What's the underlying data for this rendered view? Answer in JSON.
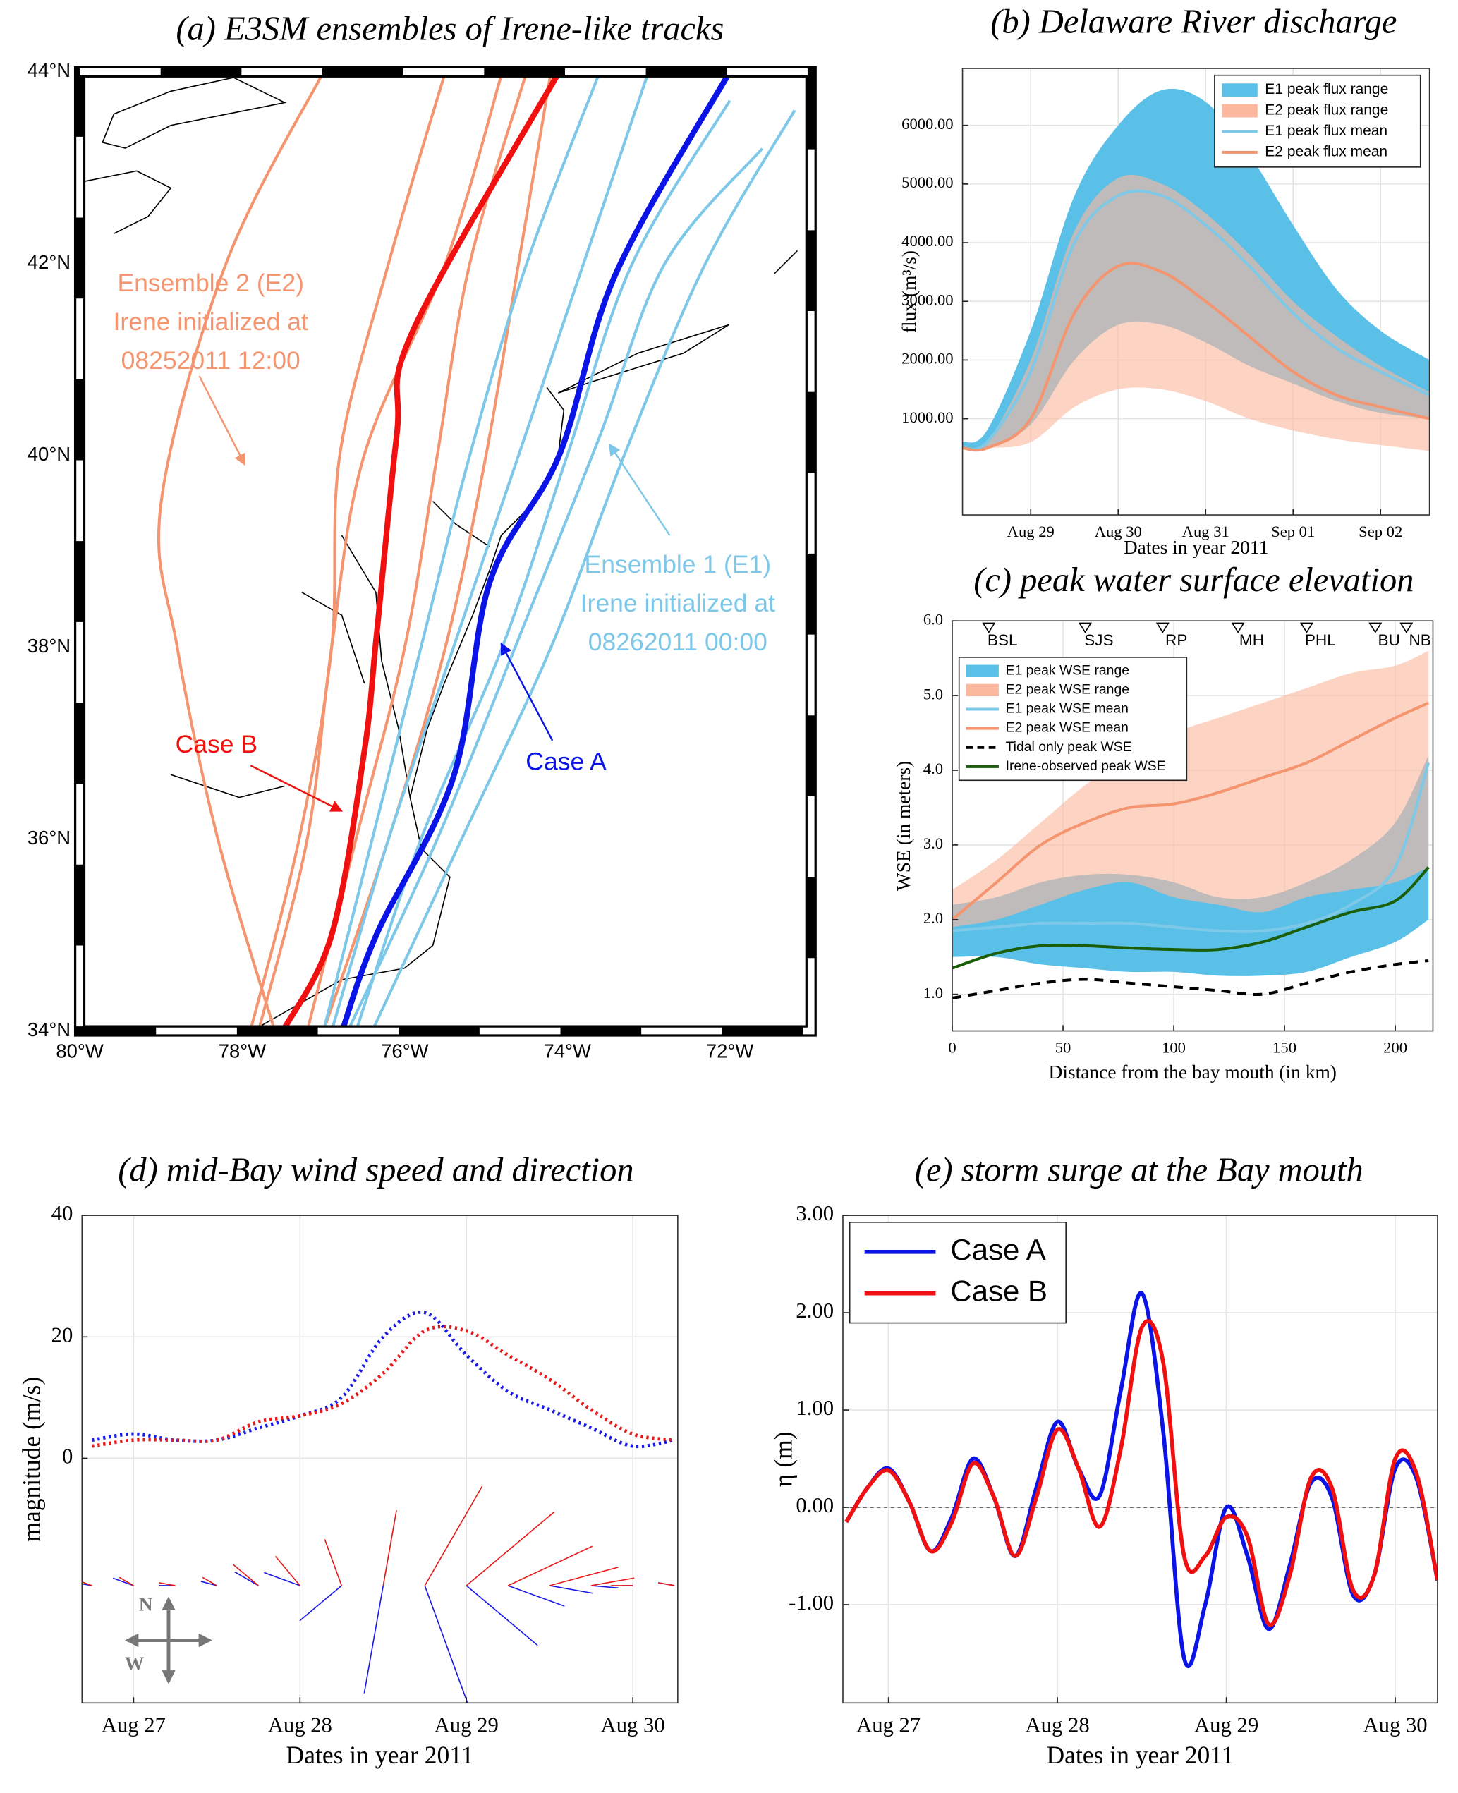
{
  "chart_data": [
    {
      "type": "map-track",
      "title": "(a) E3SM ensembles of Irene-like tracks",
      "xlim": [
        -80,
        -71
      ],
      "ylim": [
        34,
        44
      ],
      "xticks": [
        {
          "value": -80,
          "label": "80°W"
        },
        {
          "value": -78,
          "label": "78°W"
        },
        {
          "value": -76,
          "label": "76°W"
        },
        {
          "value": -74,
          "label": "74°W"
        },
        {
          "value": -72,
          "label": "72°W"
        }
      ],
      "yticks": [
        {
          "value": 34,
          "label": "34°N"
        },
        {
          "value": 36,
          "label": "36°N"
        },
        {
          "value": 38,
          "label": "38°N"
        },
        {
          "value": 40,
          "label": "40°N"
        },
        {
          "value": 42,
          "label": "42°N"
        },
        {
          "value": 44,
          "label": "44°N"
        }
      ],
      "ensembles": [
        {
          "label_lines": [
            "Ensemble 2 (E2)",
            "Irene initialized at",
            "08252011 12:00"
          ],
          "color": "#f4956f",
          "tracks": [
            {
              "x": [
                -77.8,
                -77.2,
                -76.9,
                -76.5,
                -75.5,
                -74.8
              ],
              "y": [
                34,
                36,
                38,
                40,
                42,
                44
              ]
            },
            {
              "x": [
                -77.6,
                -78.3,
                -78.8,
                -79.0,
                -78.2,
                -77.0
              ],
              "y": [
                34,
                36,
                38,
                39.5,
                42,
                44
              ]
            },
            {
              "x": [
                -77.2,
                -76.6,
                -76.0,
                -75.6,
                -75.2,
                -74.5
              ],
              "y": [
                34,
                36,
                38,
                40,
                42,
                44
              ]
            },
            {
              "x": [
                -77.9,
                -77.3,
                -76.9,
                -76.8,
                -76.2,
                -75.5
              ],
              "y": [
                34,
                36,
                38,
                40,
                42,
                44
              ]
            },
            {
              "x": [
                -77.0,
                -76.2,
                -75.5,
                -75.0,
                -74.6,
                -74.2
              ],
              "y": [
                34,
                36,
                38,
                40,
                42,
                44
              ]
            }
          ]
        },
        {
          "label_lines": [
            "Ensemble 1 (E1)",
            "Irene initialized at",
            "08262011 00:00"
          ],
          "color": "#7dc8e8",
          "tracks": [
            {
              "x": [
                -76.6,
                -75.8,
                -74.8,
                -74.0,
                -73.2,
                -72.0
              ],
              "y": [
                34,
                36,
                38,
                40,
                42,
                43.7
              ]
            },
            {
              "x": [
                -76.9,
                -76.2,
                -75.4,
                -74.6,
                -73.8,
                -73.0
              ],
              "y": [
                34,
                36,
                38,
                40,
                42,
                44
              ]
            },
            {
              "x": [
                -76.4,
                -75.3,
                -74.2,
                -73.3,
                -72.3,
                -71.2
              ],
              "y": [
                34,
                36,
                38,
                40,
                42,
                43.6
              ]
            },
            {
              "x": [
                -77.0,
                -76.4,
                -75.8,
                -75.2,
                -74.5,
                -73.6
              ],
              "y": [
                34,
                36,
                38,
                40,
                42,
                44
              ]
            },
            {
              "x": [
                -76.7,
                -75.6,
                -74.5,
                -73.6,
                -72.8,
                -71.6
              ],
              "y": [
                34,
                36,
                38.3,
                40.2,
                42,
                43.2
              ]
            }
          ]
        }
      ],
      "series": [
        {
          "name": "Case A",
          "color": "#0a14e6",
          "x": [
            -76.77,
            -76.35,
            -75.4,
            -74.95,
            -74.1,
            -73.4,
            -72.0
          ],
          "y": [
            34,
            35,
            36.65,
            38.69,
            40.0,
            41.9,
            44.0
          ]
        },
        {
          "name": "Case B",
          "color": "#f01010",
          "x": [
            -77.5,
            -76.9,
            -76.5,
            -76.35,
            -76.1,
            -75.9,
            -74.1
          ],
          "y": [
            34,
            35,
            36.9,
            38.1,
            40.2,
            41.3,
            44.0
          ]
        }
      ]
    },
    {
      "type": "range-line",
      "title": "(b) Delaware River discharge",
      "x_label": "Dates in year 2011",
      "y_label": "flux (m³/s)",
      "x": [
        28.22,
        28.5,
        29,
        29.5,
        30,
        30.5,
        31,
        31.5,
        32,
        32.5,
        33,
        33.56
      ],
      "xlim": [
        28.22,
        33.56
      ],
      "xticks": [
        {
          "value": 29,
          "label": "Aug 29"
        },
        {
          "value": 30,
          "label": "Aug 30"
        },
        {
          "value": 31,
          "label": "Aug 31"
        },
        {
          "value": 32,
          "label": "Sep 01"
        },
        {
          "value": 33,
          "label": "Sep 02"
        }
      ],
      "ylim": [
        -640,
        6970
      ],
      "yticks": [
        {
          "value": 1000,
          "label": "1000.00"
        },
        {
          "value": 2000,
          "label": "2000.00"
        },
        {
          "value": 3000,
          "label": "3000.00"
        },
        {
          "value": 4000,
          "label": "4000.00"
        },
        {
          "value": 5000,
          "label": "5000.00"
        },
        {
          "value": 6000,
          "label": "6000.00"
        }
      ],
      "grid": true,
      "legend": "upper right",
      "ranges": [
        {
          "name": "E1 peak flux range",
          "color": "#5bc0e8",
          "lower": [
            500,
            500,
            900,
            2000,
            2600,
            2600,
            2300,
            1900,
            1600,
            1300,
            1100,
            1000
          ],
          "upper": [
            600,
            800,
            2500,
            4800,
            6000,
            6600,
            6400,
            5500,
            4300,
            3200,
            2500,
            2000
          ]
        },
        {
          "name": "E2 peak flux range",
          "color": "#fbb89e",
          "lower": [
            500,
            500,
            600,
            1200,
            1500,
            1500,
            1300,
            1000,
            800,
            650,
            550,
            450
          ],
          "upper": [
            500,
            600,
            2000,
            4200,
            5100,
            5000,
            4500,
            3800,
            3000,
            2400,
            1900,
            1450
          ]
        }
      ],
      "series": [
        {
          "name": "E1 peak flux mean",
          "color": "#7ec8e8",
          "values": [
            500,
            600,
            1800,
            4000,
            4800,
            4800,
            4300,
            3600,
            2800,
            2200,
            1800,
            1400
          ]
        },
        {
          "name": "E2 peak flux mean",
          "color": "#f4956f",
          "values": [
            500,
            500,
            1000,
            2800,
            3600,
            3500,
            3000,
            2400,
            1800,
            1400,
            1200,
            1000
          ]
        }
      ]
    },
    {
      "type": "range-line",
      "title": "(c) peak water surface elevation",
      "x_label": "Distance from the bay mouth (in km)",
      "y_label": "WSE (in meters)",
      "x": [
        0,
        20,
        40,
        60,
        80,
        100,
        120,
        140,
        160,
        180,
        200,
        215
      ],
      "xlim": [
        0,
        217
      ],
      "xticks": [
        0,
        50,
        100,
        150,
        200
      ],
      "ylim": [
        0.51,
        6.0
      ],
      "yticks": [
        {
          "value": 1,
          "label": "1.0"
        },
        {
          "value": 2,
          "label": "2.0"
        },
        {
          "value": 3,
          "label": "3.0"
        },
        {
          "value": 4,
          "label": "4.0"
        },
        {
          "value": 5,
          "label": "5.0"
        },
        {
          "value": 6,
          "label": "6.0"
        }
      ],
      "grid": true,
      "legend": "upper left",
      "stations": {
        "names": [
          "BSL",
          "SJS",
          "RP",
          "MH",
          "PHL",
          "BU",
          "NB"
        ],
        "x": [
          16.5,
          60,
          95,
          129,
          160,
          191,
          205
        ]
      },
      "ranges": [
        {
          "name": "E1 peak WSE range",
          "color": "#5bc0e8",
          "lower": [
            1.5,
            1.5,
            1.4,
            1.35,
            1.3,
            1.3,
            1.25,
            1.25,
            1.3,
            1.5,
            1.7,
            2.0
          ],
          "upper": [
            2.2,
            2.3,
            2.5,
            2.6,
            2.6,
            2.5,
            2.3,
            2.3,
            2.5,
            2.8,
            3.3,
            4.2
          ]
        },
        {
          "name": "E2 peak WSE range",
          "color": "#fbb89e",
          "lower": [
            1.9,
            2.0,
            2.2,
            2.4,
            2.5,
            2.3,
            2.2,
            2.1,
            2.3,
            2.4,
            2.5,
            2.7
          ],
          "upper": [
            2.4,
            2.8,
            3.3,
            3.8,
            4.2,
            4.5,
            4.7,
            4.9,
            5.1,
            5.3,
            5.4,
            5.6
          ]
        }
      ],
      "series": [
        {
          "name": "E1 peak WSE mean",
          "color": "#7ec8e8",
          "values": [
            1.85,
            1.9,
            1.95,
            1.95,
            1.95,
            1.9,
            1.85,
            1.85,
            1.95,
            2.2,
            2.7,
            4.1
          ]
        },
        {
          "name": "E2 peak WSE mean",
          "color": "#f4956f",
          "values": [
            2.0,
            2.5,
            3.0,
            3.3,
            3.5,
            3.55,
            3.7,
            3.9,
            4.1,
            4.4,
            4.7,
            4.9
          ]
        },
        {
          "name": "Tidal only peak WSE",
          "color": "#000000",
          "dash": true,
          "values": [
            0.95,
            1.05,
            1.15,
            1.2,
            1.15,
            1.1,
            1.05,
            1.0,
            1.15,
            1.3,
            1.4,
            1.45
          ]
        },
        {
          "name": "Irene-observed peak WSE",
          "color": "#1a5e0a",
          "values": [
            1.35,
            1.55,
            1.65,
            1.65,
            1.62,
            1.6,
            1.6,
            1.7,
            1.9,
            2.1,
            2.25,
            2.7
          ]
        }
      ]
    },
    {
      "type": "stick-line",
      "title": "(d) mid-Bay wind speed and direction",
      "x_label": "Dates in year 2011",
      "y_label": "magnitude (m/s)",
      "x": [
        26.75,
        27,
        27.25,
        27.5,
        27.75,
        28,
        28.25,
        28.5,
        28.75,
        29,
        29.25,
        29.5,
        29.75,
        30,
        30.25
      ],
      "xlim": [
        26.69,
        30.27
      ],
      "xticks": [
        {
          "value": 27,
          "label": "Aug 27"
        },
        {
          "value": 28,
          "label": "Aug 28"
        },
        {
          "value": 29,
          "label": "Aug 29"
        },
        {
          "value": 30,
          "label": "Aug 30"
        }
      ],
      "ylim": [
        -40.3,
        40
      ],
      "yticks": [
        0,
        20,
        40
      ],
      "grid": true,
      "compass_labels": [
        "N",
        "W"
      ],
      "series": [
        {
          "color": "#1a1ae6",
          "values": [
            3,
            4,
            3,
            3,
            5,
            7,
            10,
            20,
            24,
            17,
            11,
            8,
            5,
            2,
            3
          ],
          "directions": [
            280,
            290,
            270,
            285,
            300,
            290,
            230,
            190,
            160,
            130,
            110,
            100,
            95,
            270,
            280
          ]
        },
        {
          "color": "#e61a1a",
          "values": [
            2,
            3,
            3,
            3,
            6,
            7,
            9,
            14,
            21,
            21,
            17,
            13,
            8,
            4,
            3
          ],
          "directions": [
            290,
            300,
            280,
            300,
            310,
            320,
            340,
            10,
            30,
            50,
            65,
            75,
            80,
            270,
            280
          ]
        }
      ]
    },
    {
      "type": "line",
      "title": "(e) storm surge at the Bay mouth",
      "x_label": "Dates in year 2011",
      "y_label": "η (m)",
      "x": [
        26.75,
        26.875,
        27,
        27.125,
        27.25,
        27.375,
        27.5,
        27.625,
        27.75,
        27.875,
        28,
        28.125,
        28.25,
        28.375,
        28.5,
        28.625,
        28.75,
        28.875,
        29,
        29.125,
        29.25,
        29.375,
        29.5,
        29.625,
        29.75,
        29.875,
        30,
        30.125,
        30.25
      ],
      "xlim": [
        26.73,
        30.25
      ],
      "xticks": [
        {
          "value": 27,
          "label": "Aug 27"
        },
        {
          "value": 28,
          "label": "Aug 28"
        },
        {
          "value": 29,
          "label": "Aug 29"
        },
        {
          "value": 30,
          "label": "Aug 30"
        }
      ],
      "ylim": [
        -2.01,
        3.0
      ],
      "yticks": [
        {
          "value": -1,
          "label": "-1.00"
        },
        {
          "value": 0,
          "label": "0.00"
        },
        {
          "value": 1,
          "label": "1.00"
        },
        {
          "value": 2,
          "label": "2.00"
        },
        {
          "value": 3,
          "label": "3.00"
        }
      ],
      "grid": true,
      "legend": "upper left",
      "series": [
        {
          "name": "Case A",
          "color": "#0a14e6",
          "values": [
            -0.15,
            0.2,
            0.4,
            0.05,
            -0.45,
            -0.1,
            0.5,
            0.1,
            -0.5,
            0.2,
            0.88,
            0.4,
            0.12,
            1.2,
            2.2,
            0.8,
            -1.55,
            -1.0,
            0.0,
            -0.5,
            -1.25,
            -0.6,
            0.25,
            0.1,
            -0.9,
            -0.7,
            0.4,
            0.3,
            -0.75
          ]
        },
        {
          "name": "Case B",
          "color": "#f01010",
          "values": [
            -0.15,
            0.2,
            0.38,
            0.05,
            -0.45,
            -0.15,
            0.45,
            0.1,
            -0.5,
            0.1,
            0.8,
            0.4,
            -0.2,
            0.6,
            1.85,
            1.5,
            -0.5,
            -0.5,
            -0.1,
            -0.3,
            -1.2,
            -0.7,
            0.3,
            0.2,
            -0.85,
            -0.7,
            0.5,
            0.35,
            -0.75
          ]
        }
      ]
    }
  ]
}
